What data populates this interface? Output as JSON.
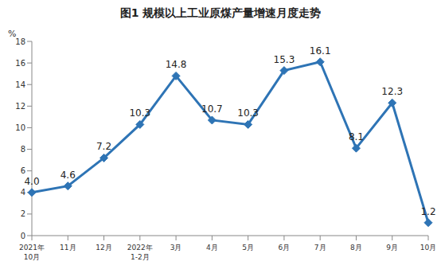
{
  "chart_data": {
    "type": "line",
    "title": "图1 规模以上工业原煤产量增速月度走势",
    "y_label": "%",
    "categories": [
      "2021年\n10月",
      "11月",
      "12月",
      "2022年\n1-2月",
      "3月",
      "4月",
      "5月",
      "6月",
      "7月",
      "8月",
      "9月",
      "10月"
    ],
    "values": [
      4.0,
      4.6,
      7.2,
      10.3,
      14.8,
      10.7,
      10.3,
      15.3,
      16.1,
      8.1,
      12.3,
      1.2
    ],
    "value_labels": [
      "4.0",
      "4.6",
      "7.2",
      "10.3",
      "14.8",
      "10.7",
      "10.3",
      "15.3",
      "16.1",
      "8.1",
      "12.3",
      "1.2"
    ],
    "color": "#2e74b5",
    "marker": "diamond",
    "ylim": [
      0,
      18
    ],
    "yticks": [
      0,
      2,
      4,
      6,
      8,
      10,
      12,
      14,
      16,
      18
    ],
    "grid": false,
    "data_labels": true
  }
}
